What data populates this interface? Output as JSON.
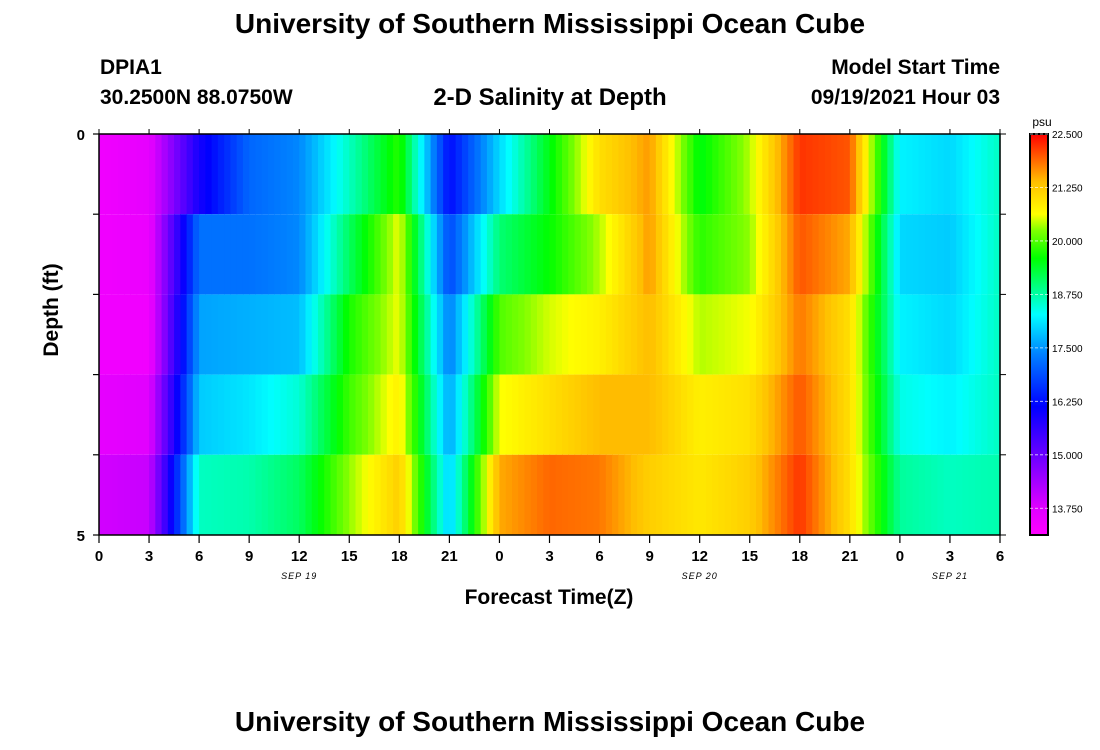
{
  "header": {
    "title": "University of Southern Mississippi Ocean Cube",
    "station": "DPIA1",
    "coordinates": "30.2500N  88.0750W",
    "subtitle": "2-D Salinity at Depth",
    "model_start_label": "Model Start Time",
    "model_start_value": "09/19/2021 Hour 03"
  },
  "footer": {
    "title": "University of Southern Mississippi Ocean Cube"
  },
  "chart_data": {
    "type": "heatmap",
    "title": "2-D Salinity at Depth",
    "xlabel": "Forecast Time(Z)",
    "ylabel": "Depth (ft)",
    "x_tick_labels": [
      "0",
      "3",
      "6",
      "9",
      "12",
      "15",
      "18",
      "21",
      "0",
      "3",
      "6",
      "9",
      "12",
      "15",
      "18",
      "21",
      "0",
      "3",
      "6"
    ],
    "date_labels": [
      {
        "label": "SEP 19",
        "tick_index": 4
      },
      {
        "label": "SEP 20",
        "tick_index": 12
      },
      {
        "label": "SEP 21",
        "tick_index": 17
      }
    ],
    "y_tick_labels": [
      "0",
      "5"
    ],
    "ylim": [
      0,
      5
    ],
    "colorbar": {
      "unit": "psu",
      "min": 13.125,
      "max": 22.5,
      "tick_labels": [
        "22.500",
        "21.250",
        "20.000",
        "18.750",
        "17.500",
        "16.250",
        "15.000",
        "13.750"
      ]
    },
    "x_hours": [
      0,
      3,
      6,
      9,
      12,
      15,
      18,
      21,
      24,
      27,
      30,
      33,
      36,
      39,
      42,
      45,
      48,
      51,
      54
    ],
    "depth_layers": [
      0.5,
      1.5,
      2.5,
      3.5,
      4.5
    ],
    "values": [
      [
        13.4,
        13.6,
        15.9,
        17.1,
        17.4,
        18.6,
        19.8,
        16.2,
        18.0,
        19.5,
        21.0,
        21.6,
        19.5,
        20.4,
        22.2,
        22.0,
        18.2,
        18.0,
        18.6
      ],
      [
        13.4,
        13.5,
        17.2,
        17.2,
        17.4,
        19.1,
        20.6,
        16.8,
        19.0,
        19.6,
        20.4,
        21.6,
        19.8,
        20.3,
        22.0,
        21.5,
        18.0,
        17.9,
        18.6
      ],
      [
        13.4,
        13.4,
        17.6,
        17.7,
        17.8,
        19.7,
        20.6,
        17.3,
        20.0,
        20.5,
        20.8,
        21.4,
        20.4,
        20.6,
        21.8,
        21.0,
        18.2,
        18.0,
        18.6
      ],
      [
        13.6,
        13.7,
        17.9,
        18.1,
        18.5,
        19.9,
        20.8,
        17.6,
        20.6,
        21.0,
        21.4,
        21.4,
        20.8,
        21.0,
        22.0,
        21.0,
        18.4,
        18.2,
        18.6
      ],
      [
        13.9,
        14.0,
        18.6,
        18.7,
        19.1,
        20.3,
        21.2,
        17.9,
        21.5,
        21.9,
        21.8,
        21.2,
        20.9,
        21.2,
        22.2,
        21.0,
        18.8,
        18.6,
        18.7
      ]
    ]
  }
}
